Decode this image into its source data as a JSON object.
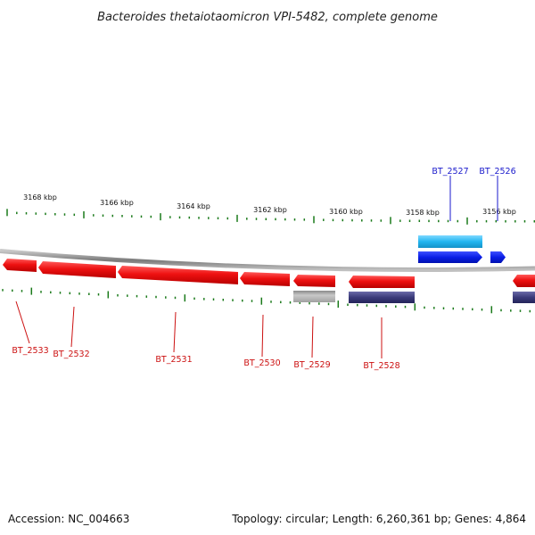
{
  "title": "Bacteroides thetaiotaomicron VPI-5482, complete genome",
  "footer": {
    "accession": "Accession: NC_004663",
    "info": "Topology: circular; Length: 6,260,361 bp; Genes: 4,864"
  },
  "colors": {
    "forward_gene": "#0a22e6",
    "forward_gene_label": "#1a1acc",
    "reverse_gene": "#ee1111",
    "reverse_gene_label": "#cc1111",
    "cds_light_blue": "#22b6f0",
    "cds_gray": "#a8a8a8",
    "cds_navy": "#3a3a7a",
    "tick": "#1a7a1a",
    "backbone": "#8a8a8a"
  },
  "ruler": {
    "unit": "kbp",
    "labels": [
      {
        "kbp": 3168,
        "text": "3168 kbp"
      },
      {
        "kbp": 3166,
        "text": "3166 kbp"
      },
      {
        "kbp": 3164,
        "text": "3164 kbp"
      },
      {
        "kbp": 3162,
        "text": "3162 kbp"
      },
      {
        "kbp": 3160,
        "text": "3160 kbp"
      },
      {
        "kbp": 3158,
        "text": "3158 kbp"
      },
      {
        "kbp": 3156,
        "text": "3156 kbp"
      }
    ]
  },
  "genes": {
    "forward": [
      {
        "id": "BT_2527",
        "label": "BT_2527"
      },
      {
        "id": "BT_2526",
        "label": "BT_2526"
      }
    ],
    "reverse": [
      {
        "id": "BT_2533",
        "label": "BT_2533"
      },
      {
        "id": "BT_2532",
        "label": "BT_2532"
      },
      {
        "id": "BT_2531",
        "label": "BT_2531"
      },
      {
        "id": "BT_2530",
        "label": "BT_2530"
      },
      {
        "id": "BT_2529",
        "label": "BT_2529"
      },
      {
        "id": "BT_2528",
        "label": "BT_2528"
      }
    ]
  }
}
